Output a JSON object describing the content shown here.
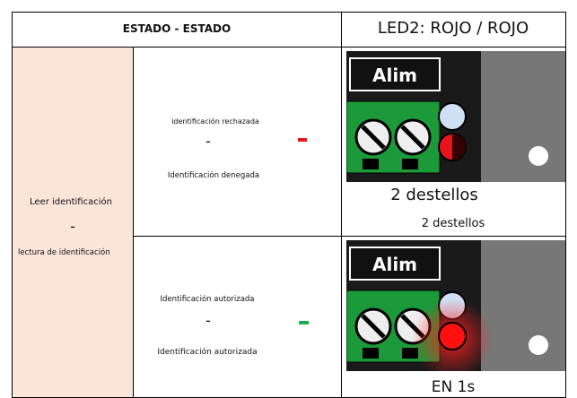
{
  "header": {
    "state": "ESTADO - ESTADO",
    "led": "LED2: ROJO / ROJO"
  },
  "action": {
    "line1": "Leer identificación",
    "separator": "-",
    "line2": "lectura de identificación"
  },
  "rows": [
    {
      "line1": "identificación rechazada",
      "separator": "-",
      "line2": "Identificación denegada",
      "image_label": "Alim",
      "caption": "2 destellos",
      "caption2": "2 destellos"
    },
    {
      "line1": "Identificación autorizada",
      "separator": "-",
      "line2": "Identificación autorizada",
      "image_label": "Alim",
      "caption": "EN 1s"
    }
  ]
}
